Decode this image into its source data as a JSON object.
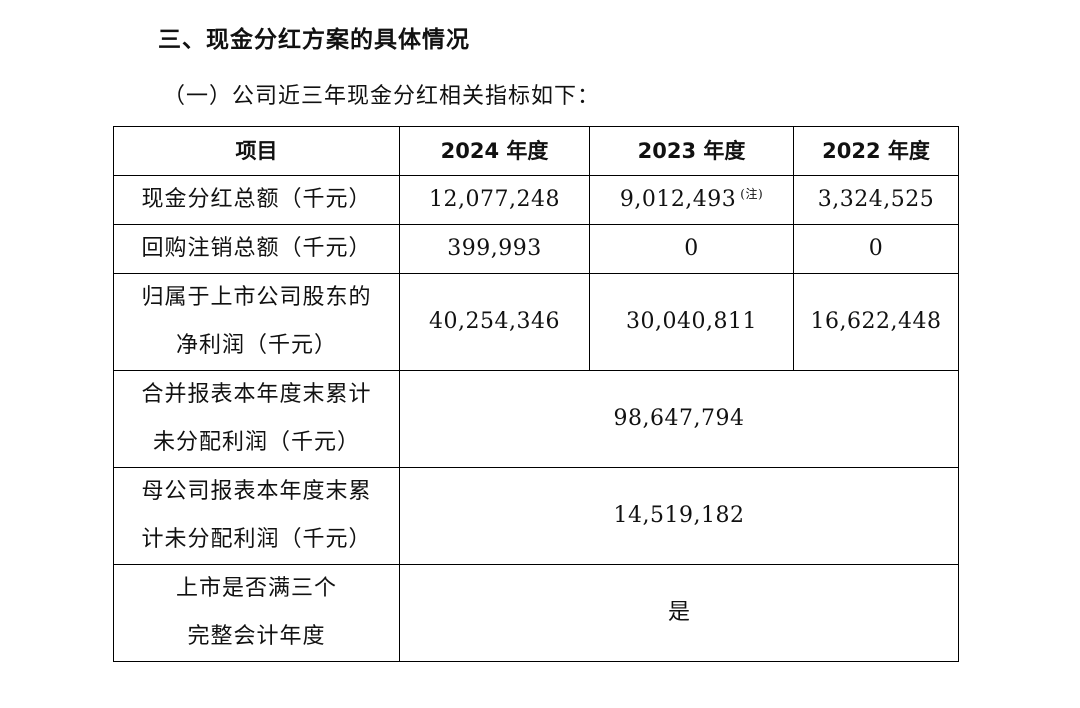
{
  "section_title": "三、现金分红方案的具体情况",
  "subsection_title": "（一）公司近三年现金分红相关指标如下：",
  "table": {
    "headers": {
      "item": "项目",
      "y2024": "2024 年度",
      "y2023": "2023 年度",
      "y2022": "2022 年度"
    },
    "rows": {
      "cash_dividend": {
        "label": "现金分红总额（千元）",
        "y2024": "12,077,248",
        "y2023": "9,012,493",
        "y2023_note": "(注)",
        "y2022": "3,324,525"
      },
      "buyback": {
        "label": "回购注销总额（千元）",
        "y2024": "399,993",
        "y2023": "0",
        "y2022": "0"
      },
      "net_profit": {
        "label_line1": "归属于上市公司股东的",
        "label_line2": "净利润（千元）",
        "y2024": "40,254,346",
        "y2023": "30,040,811",
        "y2022": "16,622,448"
      },
      "consolidated_undistributed": {
        "label_line1": "合并报表本年度末累计",
        "label_line2": "未分配利润（千元）",
        "value": "98,647,794"
      },
      "parent_undistributed": {
        "label_line1": "母公司报表本年度末累",
        "label_line2": "计未分配利润（千元）",
        "value": "14,519,182"
      },
      "listed_three_years": {
        "label_line1": "上市是否满三个",
        "label_line2": "完整会计年度",
        "value": "是"
      }
    }
  }
}
